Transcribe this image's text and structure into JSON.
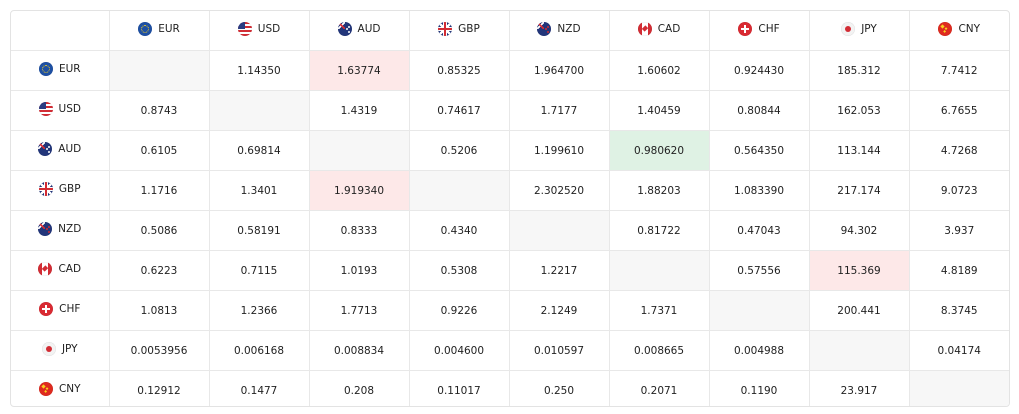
{
  "currencies": [
    {
      "code": "EUR",
      "flag": "eu-flag-icon"
    },
    {
      "code": "USD",
      "flag": "us-flag-icon"
    },
    {
      "code": "AUD",
      "flag": "au-flag-icon"
    },
    {
      "code": "GBP",
      "flag": "gb-flag-icon"
    },
    {
      "code": "NZD",
      "flag": "nz-flag-icon"
    },
    {
      "code": "CAD",
      "flag": "ca-flag-icon"
    },
    {
      "code": "CHF",
      "flag": "ch-flag-icon"
    },
    {
      "code": "JPY",
      "flag": "jp-flag-icon"
    },
    {
      "code": "CNY",
      "flag": "cn-flag-icon"
    }
  ],
  "rows": [
    {
      "values": [
        "",
        "1.14350",
        "1.63774",
        "0.85325",
        "1.964700",
        "1.60602",
        "0.924430",
        "185.312",
        "7.7412"
      ],
      "highlights": [
        "",
        "",
        "red",
        "",
        "",
        "",
        "",
        "",
        ""
      ]
    },
    {
      "values": [
        "0.8743",
        "",
        "1.4319",
        "0.74617",
        "1.7177",
        "1.40459",
        "0.80844",
        "162.053",
        "6.7655"
      ],
      "highlights": [
        "",
        "",
        "",
        "",
        "",
        "",
        "",
        "",
        ""
      ]
    },
    {
      "values": [
        "0.6105",
        "0.69814",
        "",
        "0.5206",
        "1.199610",
        "0.980620",
        "0.564350",
        "113.144",
        "4.7268"
      ],
      "highlights": [
        "",
        "",
        "",
        "",
        "",
        "green",
        "",
        "",
        ""
      ]
    },
    {
      "values": [
        "1.1716",
        "1.3401",
        "1.919340",
        "",
        "2.302520",
        "1.88203",
        "1.083390",
        "217.174",
        "9.0723"
      ],
      "highlights": [
        "",
        "",
        "red",
        "",
        "",
        "",
        "",
        "",
        ""
      ]
    },
    {
      "values": [
        "0.5086",
        "0.58191",
        "0.8333",
        "0.4340",
        "",
        "0.81722",
        "0.47043",
        "94.302",
        "3.937"
      ],
      "highlights": [
        "",
        "",
        "",
        "",
        "",
        "",
        "",
        "",
        ""
      ]
    },
    {
      "values": [
        "0.6223",
        "0.7115",
        "1.0193",
        "0.5308",
        "1.2217",
        "",
        "0.57556",
        "115.369",
        "4.8189"
      ],
      "highlights": [
        "",
        "",
        "",
        "",
        "",
        "",
        "",
        "red",
        ""
      ]
    },
    {
      "values": [
        "1.0813",
        "1.2366",
        "1.7713",
        "0.9226",
        "2.1249",
        "1.7371",
        "",
        "200.441",
        "8.3745"
      ],
      "highlights": [
        "",
        "",
        "",
        "",
        "",
        "",
        "",
        "",
        ""
      ]
    },
    {
      "values": [
        "0.0053956",
        "0.006168",
        "0.008834",
        "0.004600",
        "0.010597",
        "0.008665",
        "0.004988",
        "",
        "0.04174"
      ],
      "highlights": [
        "",
        "",
        "",
        "",
        "",
        "",
        "",
        "",
        ""
      ]
    },
    {
      "values": [
        "0.12912",
        "0.1477",
        "0.208",
        "0.11017",
        "0.250",
        "0.2071",
        "0.1190",
        "23.917",
        ""
      ],
      "highlights": [
        "",
        "",
        "",
        "",
        "",
        "",
        "",
        "",
        ""
      ]
    }
  ],
  "colors": {
    "highlight_red": "#fde8e8",
    "highlight_green": "#dff2e4",
    "diagonal": "#f7f7f7"
  }
}
